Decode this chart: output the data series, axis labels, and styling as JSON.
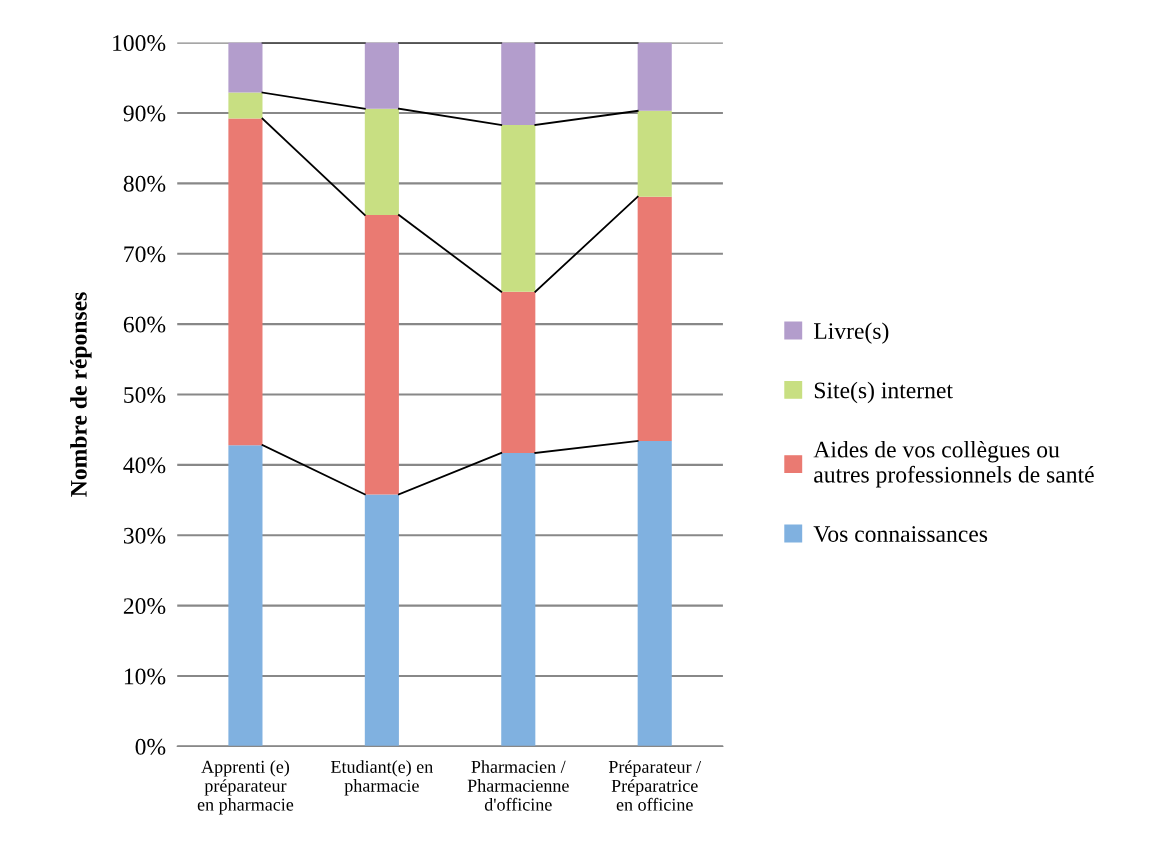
{
  "chart_data": {
    "type": "bar",
    "stacked": true,
    "ylabel": "Nombre de réponses",
    "categories": [
      "Apprenti (e)\npréparateur\nen pharmacie",
      "Etudiant(e) en\npharmacie",
      "Pharmacien /\nPharmacienne\nd'officine",
      "Préparateur /\nPréparatrice\nen officine"
    ],
    "series": [
      {
        "name": "Vos connaissances",
        "color": "#80b1e0",
        "values": [
          42.8,
          35.8,
          41.7,
          43.4
        ]
      },
      {
        "name": "Aides de vos collègues ou\nautres professionnels de santé",
        "color": "#ea7a72",
        "values": [
          46.4,
          39.7,
          22.9,
          34.7
        ]
      },
      {
        "name": "Site(s) internet",
        "color": "#c8df82",
        "values": [
          3.7,
          15.1,
          23.7,
          12.2
        ]
      },
      {
        "name": "Livre(s)",
        "color": "#b39dcc",
        "values": [
          7.1,
          9.4,
          11.7,
          9.7
        ]
      }
    ],
    "ylim": [
      0,
      100
    ],
    "yticks": [
      {
        "value": 0,
        "label": "0%"
      },
      {
        "value": 10,
        "label": "10%"
      },
      {
        "value": 20,
        "label": "20%"
      },
      {
        "value": 30,
        "label": "30%"
      },
      {
        "value": 40,
        "label": "40%"
      },
      {
        "value": 50,
        "label": "50%"
      },
      {
        "value": 60,
        "label": "60%"
      },
      {
        "value": 70,
        "label": "70%"
      },
      {
        "value": 80,
        "label": "80%"
      },
      {
        "value": 90,
        "label": "90%"
      },
      {
        "value": 100,
        "label": "100%"
      }
    ],
    "grid": "y",
    "legend": "right"
  }
}
